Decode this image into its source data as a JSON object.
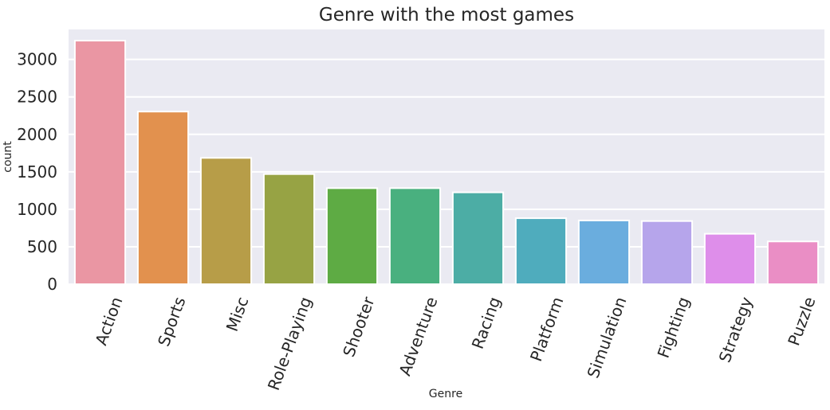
{
  "chart_data": {
    "type": "bar",
    "title": "Genre with the most games",
    "xlabel": "Genre",
    "ylabel": "count",
    "categories": [
      "Action",
      "Sports",
      "Misc",
      "Role-Playing",
      "Shooter",
      "Adventure",
      "Racing",
      "Platform",
      "Simulation",
      "Fighting",
      "Strategy",
      "Puzzle"
    ],
    "values": [
      3251,
      2304,
      1686,
      1470,
      1282,
      1282,
      1226,
      881,
      851,
      843,
      673,
      571
    ],
    "colors": [
      "#ea96a3",
      "#e2914e",
      "#b79d48",
      "#97a344",
      "#5eab44",
      "#49b07f",
      "#4cada5",
      "#4facbd",
      "#6aadde",
      "#b6a5eb",
      "#de8eea",
      "#ea8ec5"
    ],
    "ylim": [
      0,
      3400
    ],
    "yticks": [
      0,
      500,
      1000,
      1500,
      2000,
      2500,
      3000
    ],
    "grid": true,
    "background": "#eaeaf2"
  }
}
